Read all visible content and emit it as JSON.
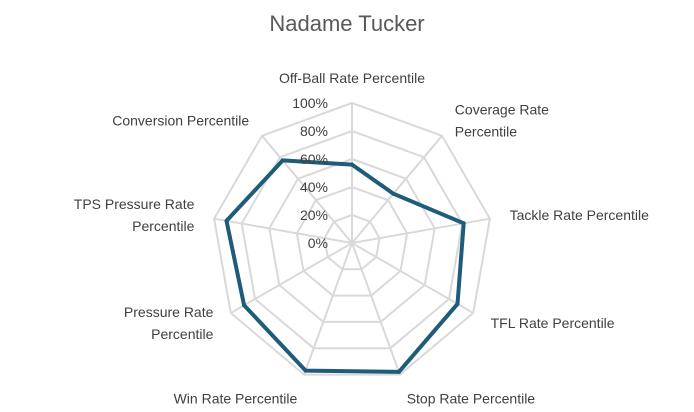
{
  "chart_data": {
    "type": "radar",
    "title": "Nadame Tucker",
    "axes": [
      "Off-Ball Rate Percentile",
      "Coverage Rate Percentile",
      "Tackle Rate Percentile",
      "TFL Rate Percentile",
      "Stop Rate Percentile",
      "Win Rate Percentile",
      "Pressure Rate Percentile",
      "TPS Pressure Rate Percentile",
      "Conversion Percentile"
    ],
    "axis_label_lines": [
      [
        "Off-Ball Rate Percentile"
      ],
      [
        "Coverage Rate",
        "Percentile"
      ],
      [
        "Tackle Rate Percentile"
      ],
      [
        "TFL Rate Percentile"
      ],
      [
        "Stop Rate Percentile"
      ],
      [
        "Win Rate Percentile"
      ],
      [
        "Pressure Rate",
        "Percentile"
      ],
      [
        "TPS Pressure Rate",
        "Percentile"
      ],
      [
        "Conversion Percentile"
      ]
    ],
    "ticks": [
      "0%",
      "20%",
      "40%",
      "60%",
      "80%",
      "100%"
    ],
    "range": [
      0,
      100
    ],
    "series": [
      {
        "values": [
          56,
          46,
          81,
          87,
          98,
          97,
          89,
          91,
          77
        ],
        "color": "#1f5c7a"
      }
    ],
    "grid": true,
    "legend": "none"
  }
}
